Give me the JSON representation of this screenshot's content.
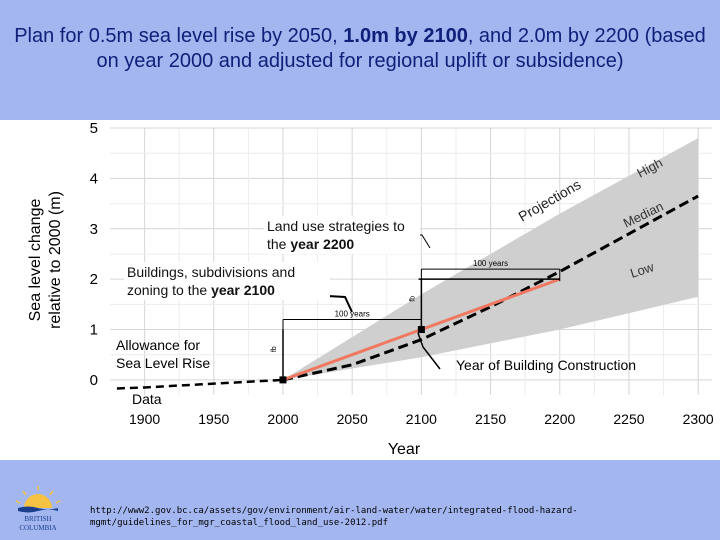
{
  "title": {
    "part1": "Plan for 0.5m sea level rise by 2050, ",
    "bold": "1.0m by 2100",
    "part2": ", and 2.0m by 2200 (based on year 2000 and adjusted for regional uplift or subsidence)"
  },
  "chart_data": {
    "type": "line",
    "xlabel": "Year",
    "ylabel_line1": "Sea level change",
    "ylabel_line2": "relative to 2000 (m)",
    "xlim": [
      1875,
      2310
    ],
    "ylim": [
      -0.3,
      5.0
    ],
    "x_ticks": [
      "1900",
      "1950",
      "2000",
      "2050",
      "2100",
      "2150",
      "2200",
      "2250",
      "2300"
    ],
    "x_tick_values": [
      1900,
      1950,
      2000,
      2050,
      2100,
      2150,
      2200,
      2250,
      2300
    ],
    "y_ticks": [
      "0",
      "1",
      "2",
      "3",
      "4",
      "5"
    ],
    "y_tick_values": [
      0,
      1,
      2,
      3,
      4,
      5
    ],
    "grid": true,
    "series": [
      {
        "name": "Data",
        "x": [
          1880,
          1900,
          1920,
          1940,
          1960,
          1980,
          2000
        ],
        "y": [
          -0.17,
          -0.15,
          -0.12,
          -0.09,
          -0.06,
          -0.03,
          0.0
        ]
      },
      {
        "name": "Median",
        "x": [
          2000,
          2050,
          2100,
          2150,
          2200,
          2250,
          2300
        ],
        "y": [
          0.0,
          0.3,
          0.8,
          1.45,
          2.15,
          2.9,
          3.65
        ]
      },
      {
        "name": "Allowance for Sea Level Rise",
        "x": [
          2000,
          2050,
          2100,
          2200
        ],
        "y": [
          0.0,
          0.5,
          1.0,
          2.0
        ]
      }
    ],
    "projection_band": {
      "name": "Projections",
      "x": [
        2000,
        2100,
        2200,
        2300
      ],
      "high": [
        0.0,
        1.7,
        3.3,
        4.8
      ],
      "low": [
        0.0,
        0.45,
        1.0,
        1.65
      ]
    },
    "band_labels": [
      "High",
      "Median",
      "Low",
      "Projections"
    ],
    "annotations": {
      "land_use": {
        "text": "Land use strategies to the ",
        "bold": "year 2200"
      },
      "buildings": {
        "text": "Buildings, subdivisions and zoning to the ",
        "bold": "year 2100"
      },
      "hundred_years": "100 years",
      "freeboard": "fb",
      "allowance": "Allowance for Sea Level Rise",
      "allowance_line1": "Allowance for",
      "allowance_line2": "Sea Level Rise",
      "construction": "Year of Building Construction",
      "data_label": "Data"
    },
    "colors": {
      "allowance": "#f07860",
      "band": "#cfcfcf",
      "median": "#000000"
    }
  },
  "footer": {
    "url": "http://www2.gov.bc.ca/assets/gov/environment/air-land-water/water/integrated-flood-hazard-mgmt/guidelines_for_mgr_coastal_flood_land_use-2012.pdf",
    "logo_text": "BRITISH COLUMBIA"
  }
}
